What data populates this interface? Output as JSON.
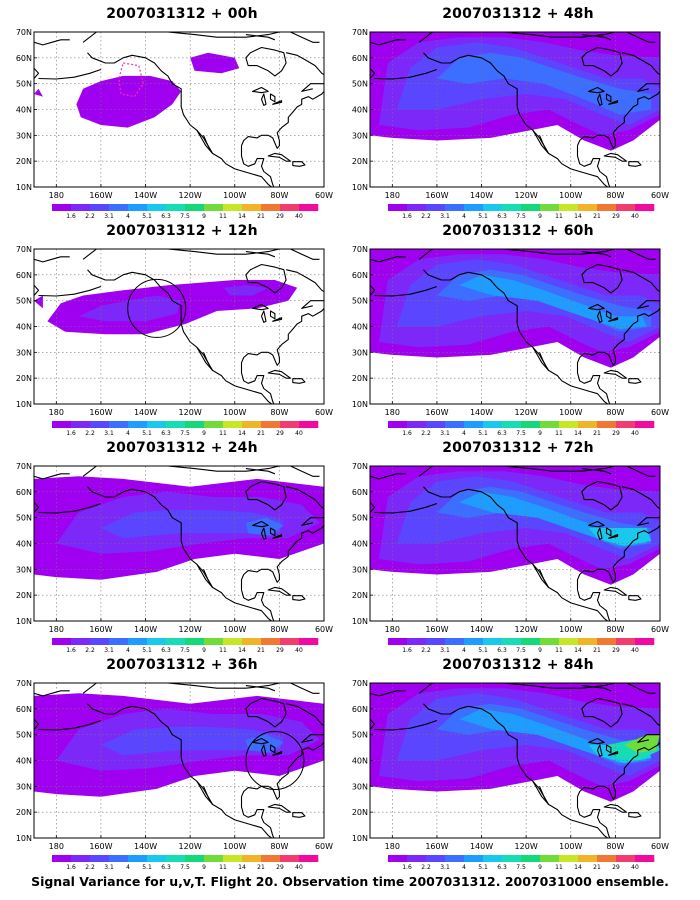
{
  "caption": "Signal Variance for u,v,T. Flight 20. Observation time 2007031312. 2007031000 ensemble.",
  "map_axes": {
    "lon_ticks": [
      "180",
      "160W",
      "140W",
      "120W",
      "100W",
      "80W",
      "60W"
    ],
    "lat_ticks": [
      "70N",
      "60N",
      "50N",
      "40N",
      "30N",
      "20N",
      "10N"
    ],
    "lon_range": [
      -190,
      -60
    ],
    "lat_range": [
      10,
      70
    ],
    "grid": "dotted"
  },
  "colorbar": {
    "labels": [
      "1.6",
      "2.2",
      "3.1",
      "4",
      "5.1",
      "6.3",
      "7.5",
      "9",
      "11",
      "14",
      "21",
      "29",
      "40"
    ],
    "colors": [
      "#a000f0",
      "#7c28f8",
      "#5a46ff",
      "#3c6eff",
      "#1e9cff",
      "#19c8ea",
      "#18dcb4",
      "#17d878",
      "#6fdc3c",
      "#c8e628",
      "#f0b428",
      "#f07832",
      "#f03c6e",
      "#f00aa0"
    ]
  },
  "panels": [
    {
      "title": "2007031312 + 00h",
      "level": 0,
      "circle": null,
      "dashed": true
    },
    {
      "title": "2007031312 + 48h",
      "level": 3,
      "circle": null,
      "dashed": false
    },
    {
      "title": "2007031312 + 12h",
      "level": 1,
      "circle": {
        "lon": -135,
        "lat": 47
      },
      "dashed": false
    },
    {
      "title": "2007031312 + 60h",
      "level": 4,
      "circle": null,
      "dashed": false
    },
    {
      "title": "2007031312 + 24h",
      "level": 2,
      "circle": null,
      "dashed": false
    },
    {
      "title": "2007031312 + 72h",
      "level": 5,
      "circle": null,
      "dashed": false
    },
    {
      "title": "2007031312 + 36h",
      "level": 2,
      "circle": {
        "lon": -82,
        "lat": 40
      },
      "dashed": false
    },
    {
      "title": "2007031312 + 84h",
      "level": 6,
      "circle": null,
      "dashed": false
    }
  ]
}
